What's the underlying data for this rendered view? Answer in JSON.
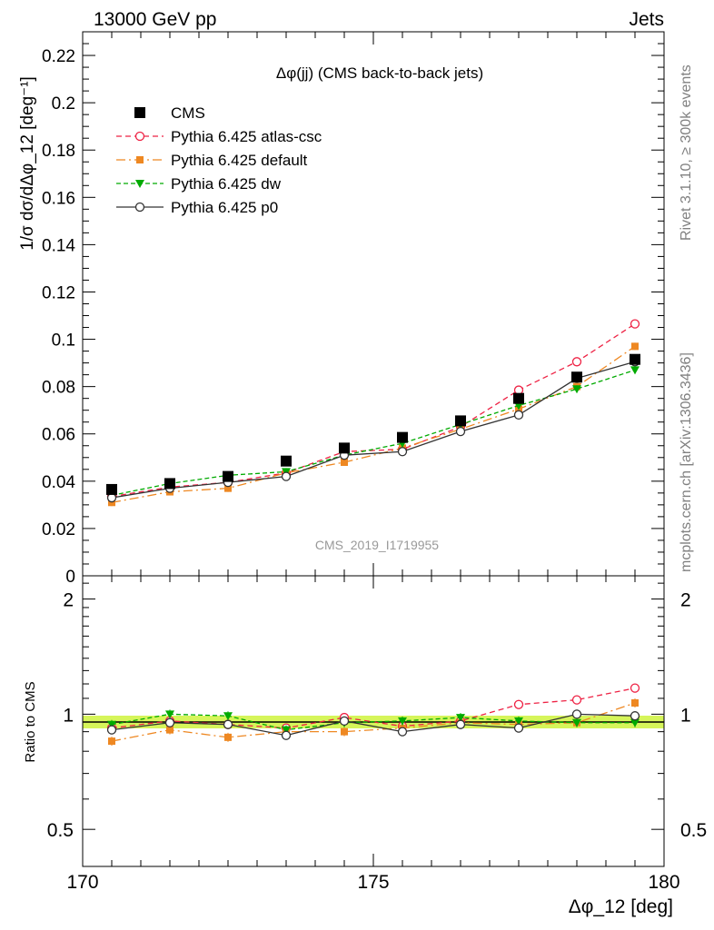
{
  "header": {
    "left": "13000 GeV pp",
    "right": "Jets"
  },
  "side_labels": {
    "rivet": "Rivet 3.1.10, ≥ 300k events",
    "mcplots": "mcplots.cern.ch [arXiv:1306.3436]"
  },
  "watermark": "CMS_2019_I1719955",
  "colors": {
    "cms": "#000000",
    "atlas_csc": "#ee2244",
    "default": "#ee8822",
    "dw": "#00aa00",
    "p0": "#333333",
    "band": "#d6f55a"
  },
  "chart_data": {
    "type": "line",
    "title": "Δφ(jj) (CMS back-to-back jets)",
    "xlabel": "Δφ_12 [deg]",
    "ylabel": "1/σ dσ/dΔφ_12 [deg⁻¹]",
    "ratio_ylabel": "Ratio to CMS",
    "xlim": [
      170,
      180
    ],
    "ylim": [
      0,
      0.23
    ],
    "ratio_ylim": [
      0.4,
      2.3
    ],
    "ratio_log_scale": true,
    "x_ticks": [
      "170",
      "175",
      "180"
    ],
    "y_ticks": [
      "0",
      "0.02",
      "0.04",
      "0.06",
      "0.08",
      "0.1",
      "0.12",
      "0.14",
      "0.16",
      "0.18",
      "0.2",
      "0.22"
    ],
    "ratio_ticks": [
      "0.5",
      "1",
      "2"
    ],
    "legend_position": "top-left",
    "x": [
      170.5,
      171.5,
      172.5,
      173.5,
      174.5,
      175.5,
      176.5,
      177.5,
      178.5,
      179.5
    ],
    "series": [
      {
        "name": "CMS",
        "key": "cms",
        "marker": "square",
        "dash": "",
        "values": [
          0.0365,
          0.039,
          0.042,
          0.0485,
          0.054,
          0.0585,
          0.0655,
          0.075,
          0.084,
          0.0915
        ],
        "ratio": [
          1,
          1,
          1,
          1,
          1,
          1,
          1,
          1,
          1,
          1
        ]
      },
      {
        "name": "Pythia 6.425 atlas-csc",
        "key": "atlas_csc",
        "marker": "open-circle",
        "dash": "6,4",
        "values": [
          0.0335,
          0.0375,
          0.0395,
          0.0435,
          0.0525,
          0.0535,
          0.063,
          0.0785,
          0.0905,
          0.1065
        ],
        "ratio": [
          0.92,
          0.96,
          0.94,
          0.92,
          0.98,
          0.93,
          0.96,
          1.06,
          1.09,
          1.17
        ]
      },
      {
        "name": "Pythia 6.425 default",
        "key": "default",
        "marker": "filled-square",
        "dash": "10,4,2,4",
        "values": [
          0.031,
          0.0355,
          0.037,
          0.0435,
          0.048,
          0.054,
          0.062,
          0.0705,
          0.08,
          0.097
        ],
        "ratio": [
          0.85,
          0.91,
          0.87,
          0.9,
          0.9,
          0.92,
          0.95,
          0.94,
          0.95,
          1.07
        ]
      },
      {
        "name": "Pythia 6.425 dw",
        "key": "dw",
        "marker": "triangle-down",
        "dash": "5,3",
        "values": [
          0.034,
          0.039,
          0.0425,
          0.044,
          0.051,
          0.056,
          0.064,
          0.072,
          0.079,
          0.087
        ],
        "ratio": [
          0.94,
          1.0,
          0.99,
          0.91,
          0.95,
          0.96,
          0.98,
          0.96,
          0.95,
          0.95
        ]
      },
      {
        "name": "Pythia 6.425 p0",
        "key": "p0",
        "marker": "open-circle",
        "dash": "",
        "values": [
          0.033,
          0.037,
          0.0395,
          0.042,
          0.051,
          0.0525,
          0.061,
          0.068,
          0.0835,
          0.0905
        ],
        "ratio": [
          0.91,
          0.95,
          0.94,
          0.88,
          0.96,
          0.9,
          0.94,
          0.92,
          1.0,
          0.99
        ]
      }
    ]
  }
}
